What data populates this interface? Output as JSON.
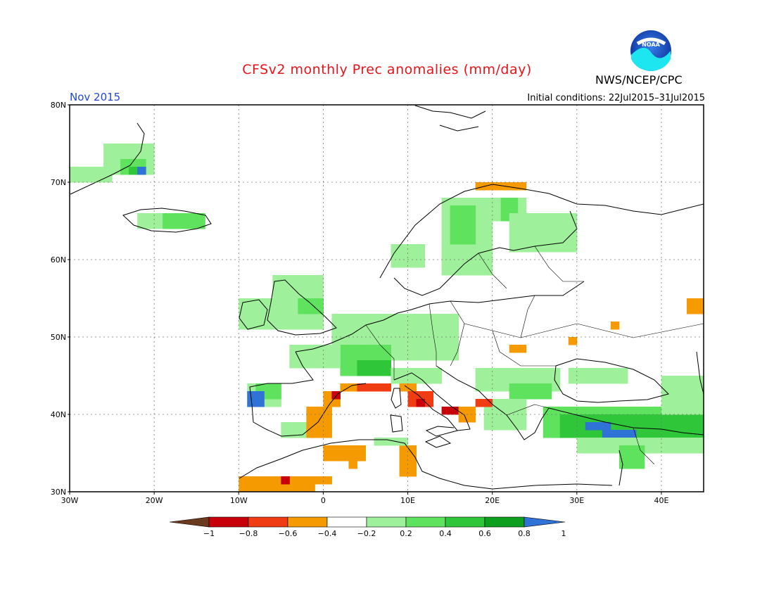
{
  "header": {
    "title": "CFSv2 monthly Prec anomalies (mm/day)",
    "agency": "NWS/NCEP/CPC",
    "logo_text": "NOAA",
    "month": "Nov 2015",
    "init_conditions": "Initial conditions: 22Jul2015–31Jul2015"
  },
  "map": {
    "lon_range": [
      -30,
      45
    ],
    "lat_range": [
      30,
      80
    ],
    "lat_ticks": [
      "80N",
      "70N",
      "60N",
      "50N",
      "40N",
      "30N"
    ],
    "lon_ticks": [
      "30W",
      "20W",
      "10W",
      "0",
      "10E",
      "20E",
      "30E",
      "40E"
    ]
  },
  "colorbar": {
    "labels": [
      "−1",
      "−0.8",
      "−0.6",
      "−0.4",
      "−0.2",
      "0.2",
      "0.4",
      "0.6",
      "0.8",
      "1"
    ],
    "colors": [
      "#6b3a1e",
      "#c8000a",
      "#f03c12",
      "#f59a00",
      "#ffffff",
      "#9ff09a",
      "#5fe25d",
      "#2fc63a",
      "#0f9f1e",
      "#2f73d6"
    ]
  },
  "anomaly_colors": {
    "light_green": "#9ff09a",
    "green": "#5fe25d",
    "mid_green": "#2fc63a",
    "dark_green": "#0f9f1e",
    "blue": "#2f73d6",
    "orange": "#f59a00",
    "red_orange": "#f03c12",
    "red": "#c8000a"
  }
}
